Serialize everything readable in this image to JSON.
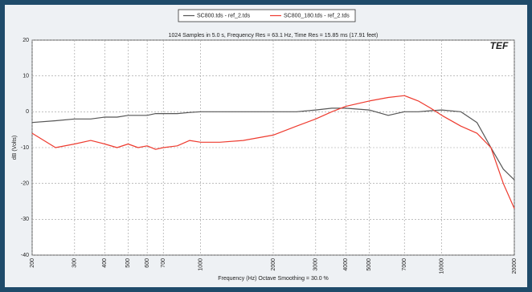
{
  "chart_data": {
    "type": "line",
    "title": "1024 Samples in 5.0 s, Frequency Res = 63.1 Hz, Time Res = 15.85 ms (17.91 feet)",
    "logo": "TEF",
    "x_label": "Frequency (Hz) Octave Smoothing = 30.0 %",
    "y_label": "dB (Volts)",
    "log_x": true,
    "grid": true,
    "x": [
      200,
      250,
      300,
      350,
      400,
      450,
      500,
      550,
      600,
      650,
      700,
      800,
      900,
      1000,
      1200,
      1500,
      2000,
      2500,
      3000,
      3500,
      4000,
      5000,
      6000,
      7000,
      8000,
      9000,
      10000,
      12000,
      14000,
      16000,
      18000,
      20000
    ],
    "series": [
      {
        "name": "SC800.tds - ref_2.tds",
        "color": "#555555",
        "values": [
          -3,
          -2.5,
          -2,
          -2,
          -1.5,
          -1.5,
          -1,
          -1,
          -1,
          -0.5,
          -0.5,
          -0.5,
          -0.2,
          0,
          0,
          0,
          0,
          0,
          0.5,
          1,
          1,
          0.5,
          -1,
          0,
          0,
          0.3,
          0.5,
          0,
          -3,
          -10,
          -16,
          -19
        ]
      },
      {
        "name": "SC800_180.tds - ref_2.tds",
        "color": "#ee3b2f",
        "values": [
          -6,
          -10,
          -9,
          -8,
          -9,
          -10,
          -9,
          -10,
          -9.5,
          -10.5,
          -10,
          -9.5,
          -8,
          -8.5,
          -8.5,
          -8,
          -6.5,
          -4,
          -2,
          0,
          1.5,
          3,
          4,
          4.5,
          3,
          1,
          -1,
          -4,
          -6,
          -10,
          -20,
          -27
        ]
      }
    ],
    "xlim": [
      200,
      20000
    ],
    "xticks": [
      200,
      300,
      400,
      500,
      600,
      700,
      1000,
      2000,
      3000,
      4000,
      5000,
      7000,
      10000,
      20000
    ],
    "ylim": [
      -40,
      20
    ],
    "yticks": [
      20,
      10,
      0,
      -10,
      -20,
      -30,
      -40
    ]
  }
}
